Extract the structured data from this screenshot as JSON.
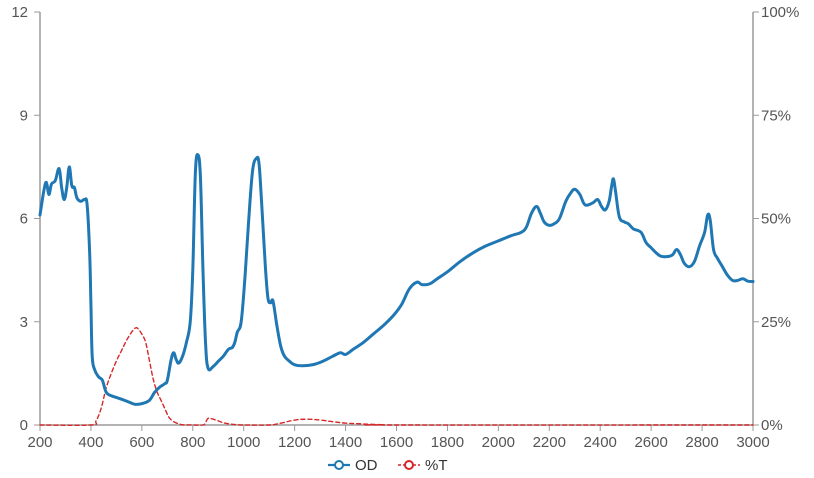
{
  "chart_data": {
    "type": "line",
    "x_axis": {
      "min": 200,
      "max": 3000,
      "ticks": [
        200,
        400,
        600,
        800,
        1000,
        1200,
        1400,
        1600,
        1800,
        2000,
        2200,
        2400,
        2600,
        2800,
        3000
      ],
      "tick_labels": [
        "200",
        "400",
        "600",
        "800",
        "1000",
        "1200",
        "1400",
        "1600",
        "1800",
        "2000",
        "2200",
        "2400",
        "2600",
        "2800",
        "3000"
      ]
    },
    "y_left": {
      "min": 0,
      "max": 12,
      "ticks": [
        0,
        3,
        6,
        9,
        12
      ],
      "tick_labels": [
        "0",
        "3",
        "6",
        "9",
        "12"
      ]
    },
    "y_right": {
      "min": 0,
      "max": 100,
      "ticks": [
        0,
        25,
        50,
        75,
        100
      ],
      "tick_labels": [
        "0%",
        "25%",
        "50%",
        "75%",
        "100%"
      ]
    },
    "grid": false,
    "legend_position": "bottom",
    "series": [
      {
        "name": "OD",
        "axis": "left",
        "color": "#1f77b4",
        "style": "solid",
        "points": [
          [
            200,
            6.1
          ],
          [
            215,
            6.8
          ],
          [
            225,
            7.05
          ],
          [
            235,
            6.7
          ],
          [
            245,
            7.0
          ],
          [
            260,
            7.1
          ],
          [
            275,
            7.45
          ],
          [
            285,
            6.9
          ],
          [
            295,
            6.55
          ],
          [
            305,
            6.9
          ],
          [
            315,
            7.5
          ],
          [
            325,
            6.95
          ],
          [
            335,
            6.9
          ],
          [
            345,
            6.6
          ],
          [
            360,
            6.5
          ],
          [
            375,
            6.55
          ],
          [
            385,
            6.4
          ],
          [
            395,
            5.0
          ],
          [
            400,
            3.5
          ],
          [
            405,
            2.0
          ],
          [
            415,
            1.6
          ],
          [
            430,
            1.4
          ],
          [
            445,
            1.3
          ],
          [
            460,
            0.95
          ],
          [
            480,
            0.85
          ],
          [
            500,
            0.8
          ],
          [
            520,
            0.75
          ],
          [
            545,
            0.68
          ],
          [
            575,
            0.6
          ],
          [
            605,
            0.63
          ],
          [
            630,
            0.72
          ],
          [
            650,
            0.95
          ],
          [
            670,
            1.1
          ],
          [
            690,
            1.2
          ],
          [
            700,
            1.3
          ],
          [
            715,
            1.9
          ],
          [
            725,
            2.1
          ],
          [
            735,
            1.9
          ],
          [
            745,
            1.8
          ],
          [
            760,
            2.0
          ],
          [
            775,
            2.4
          ],
          [
            790,
            3.0
          ],
          [
            800,
            4.5
          ],
          [
            810,
            7.3
          ],
          [
            820,
            7.85
          ],
          [
            830,
            7.2
          ],
          [
            840,
            4.5
          ],
          [
            850,
            2.4
          ],
          [
            860,
            1.65
          ],
          [
            880,
            1.7
          ],
          [
            900,
            1.85
          ],
          [
            920,
            2.0
          ],
          [
            940,
            2.2
          ],
          [
            955,
            2.25
          ],
          [
            965,
            2.4
          ],
          [
            975,
            2.7
          ],
          [
            990,
            3.0
          ],
          [
            1005,
            4.3
          ],
          [
            1020,
            6.0
          ],
          [
            1035,
            7.4
          ],
          [
            1050,
            7.75
          ],
          [
            1060,
            7.6
          ],
          [
            1070,
            6.5
          ],
          [
            1085,
            4.6
          ],
          [
            1095,
            3.7
          ],
          [
            1105,
            3.55
          ],
          [
            1115,
            3.6
          ],
          [
            1130,
            2.9
          ],
          [
            1145,
            2.3
          ],
          [
            1160,
            2.0
          ],
          [
            1180,
            1.85
          ],
          [
            1200,
            1.75
          ],
          [
            1230,
            1.72
          ],
          [
            1270,
            1.75
          ],
          [
            1310,
            1.85
          ],
          [
            1350,
            2.0
          ],
          [
            1380,
            2.1
          ],
          [
            1400,
            2.05
          ],
          [
            1430,
            2.2
          ],
          [
            1470,
            2.4
          ],
          [
            1510,
            2.65
          ],
          [
            1550,
            2.9
          ],
          [
            1590,
            3.2
          ],
          [
            1620,
            3.5
          ],
          [
            1650,
            3.95
          ],
          [
            1680,
            4.15
          ],
          [
            1700,
            4.08
          ],
          [
            1730,
            4.1
          ],
          [
            1760,
            4.25
          ],
          [
            1800,
            4.45
          ],
          [
            1850,
            4.75
          ],
          [
            1900,
            5.0
          ],
          [
            1950,
            5.2
          ],
          [
            2000,
            5.35
          ],
          [
            2050,
            5.5
          ],
          [
            2090,
            5.6
          ],
          [
            2110,
            5.75
          ],
          [
            2130,
            6.15
          ],
          [
            2150,
            6.35
          ],
          [
            2165,
            6.15
          ],
          [
            2180,
            5.9
          ],
          [
            2200,
            5.8
          ],
          [
            2220,
            5.85
          ],
          [
            2240,
            6.0
          ],
          [
            2265,
            6.5
          ],
          [
            2285,
            6.75
          ],
          [
            2300,
            6.85
          ],
          [
            2320,
            6.7
          ],
          [
            2340,
            6.4
          ],
          [
            2370,
            6.45
          ],
          [
            2390,
            6.55
          ],
          [
            2405,
            6.35
          ],
          [
            2420,
            6.25
          ],
          [
            2435,
            6.5
          ],
          [
            2445,
            6.95
          ],
          [
            2452,
            7.15
          ],
          [
            2460,
            6.8
          ],
          [
            2475,
            6.05
          ],
          [
            2495,
            5.9
          ],
          [
            2510,
            5.85
          ],
          [
            2530,
            5.7
          ],
          [
            2560,
            5.6
          ],
          [
            2580,
            5.3
          ],
          [
            2600,
            5.15
          ],
          [
            2620,
            5.0
          ],
          [
            2640,
            4.9
          ],
          [
            2670,
            4.9
          ],
          [
            2685,
            4.95
          ],
          [
            2700,
            5.1
          ],
          [
            2715,
            4.95
          ],
          [
            2730,
            4.7
          ],
          [
            2750,
            4.6
          ],
          [
            2770,
            4.75
          ],
          [
            2790,
            5.2
          ],
          [
            2810,
            5.6
          ],
          [
            2822,
            6.1
          ],
          [
            2832,
            5.95
          ],
          [
            2845,
            5.1
          ],
          [
            2860,
            4.85
          ],
          [
            2880,
            4.6
          ],
          [
            2900,
            4.35
          ],
          [
            2920,
            4.2
          ],
          [
            2940,
            4.2
          ],
          [
            2960,
            4.25
          ],
          [
            2980,
            4.18
          ],
          [
            3000,
            4.17
          ]
        ]
      },
      {
        "name": "%T",
        "axis": "right",
        "color": "#d62728",
        "style": "dashed",
        "points": [
          [
            200,
            0
          ],
          [
            400,
            0
          ],
          [
            420,
            1.0
          ],
          [
            440,
            4
          ],
          [
            460,
            9
          ],
          [
            480,
            12.5
          ],
          [
            500,
            15.5
          ],
          [
            520,
            18
          ],
          [
            540,
            20.5
          ],
          [
            560,
            22.5
          ],
          [
            575,
            23.5
          ],
          [
            585,
            23.3
          ],
          [
            600,
            22
          ],
          [
            615,
            20
          ],
          [
            630,
            15.5
          ],
          [
            645,
            11
          ],
          [
            660,
            8
          ],
          [
            675,
            6
          ],
          [
            690,
            4
          ],
          [
            705,
            2
          ],
          [
            720,
            1.0
          ],
          [
            735,
            0.5
          ],
          [
            745,
            0.3
          ],
          [
            760,
            0.05
          ],
          [
            800,
            0
          ],
          [
            840,
            0
          ],
          [
            850,
            0.6
          ],
          [
            860,
            1.6
          ],
          [
            875,
            1.5
          ],
          [
            900,
            1.0
          ],
          [
            920,
            0.55
          ],
          [
            950,
            0.2
          ],
          [
            980,
            0.05
          ],
          [
            1000,
            0
          ],
          [
            1100,
            0
          ],
          [
            1150,
            0.5
          ],
          [
            1200,
            1.2
          ],
          [
            1250,
            1.4
          ],
          [
            1300,
            1.2
          ],
          [
            1350,
            0.8
          ],
          [
            1400,
            0.45
          ],
          [
            1450,
            0.3
          ],
          [
            1500,
            0.15
          ],
          [
            1550,
            0.07
          ],
          [
            1600,
            0
          ],
          [
            3000,
            0
          ]
        ]
      }
    ]
  }
}
